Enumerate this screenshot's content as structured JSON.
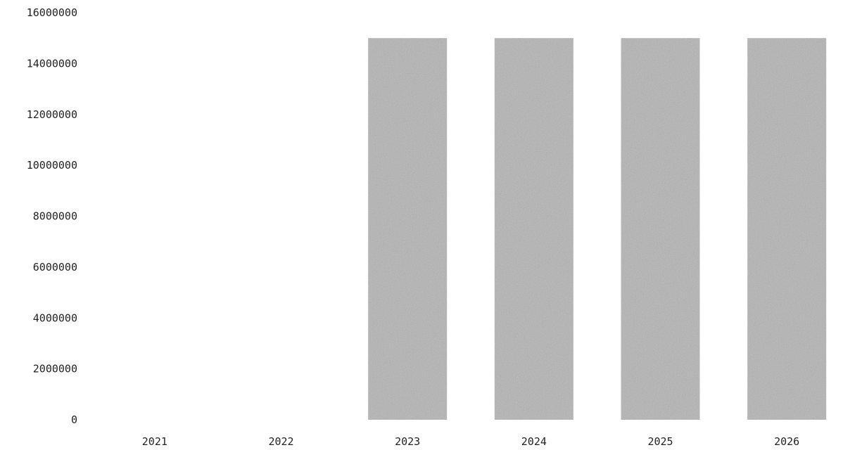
{
  "chart_data": {
    "type": "bar",
    "title": "",
    "xlabel": "",
    "ylabel": "",
    "categories": [
      "2021",
      "2022",
      "2023",
      "2024",
      "2025",
      "2026"
    ],
    "values": [
      0,
      0,
      15000000,
      15000000,
      15000000,
      15000000
    ],
    "ylim": [
      0,
      16000000
    ],
    "y_ticks": [
      "0",
      "2000000",
      "4000000",
      "6000000",
      "8000000",
      "10000000",
      "12000000",
      "14000000",
      "16000000"
    ],
    "grid": false,
    "legend": "none",
    "bar_color": "#b4b4b4"
  }
}
